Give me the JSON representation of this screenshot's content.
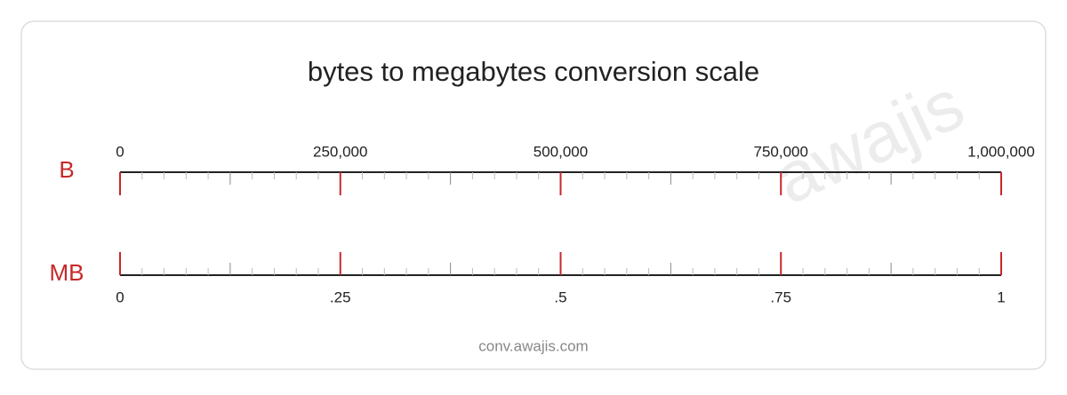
{
  "title": "bytes to megabytes conversion scale",
  "watermark": "awajis",
  "footer": "conv.awajis.com",
  "scales": [
    {
      "unit": "B",
      "lim": [
        0,
        1000000
      ],
      "ticks": [
        0,
        {
          "value": 250000,
          "label": "250,000"
        },
        {
          "value": 500000,
          "label": "500,000"
        },
        {
          "value": 750000,
          "label": "750,000"
        },
        {
          "value": 1000000,
          "label": "1,000,000"
        }
      ]
    },
    {
      "unit": "MB",
      "lim": [
        0,
        1
      ],
      "ticks": [
        0,
        {
          "value": 0.25,
          "label": ".25"
        },
        {
          "value": 0.5,
          "label": ".5"
        },
        {
          "value": 0.75,
          "label": ".75"
        },
        1
      ]
    }
  ]
}
